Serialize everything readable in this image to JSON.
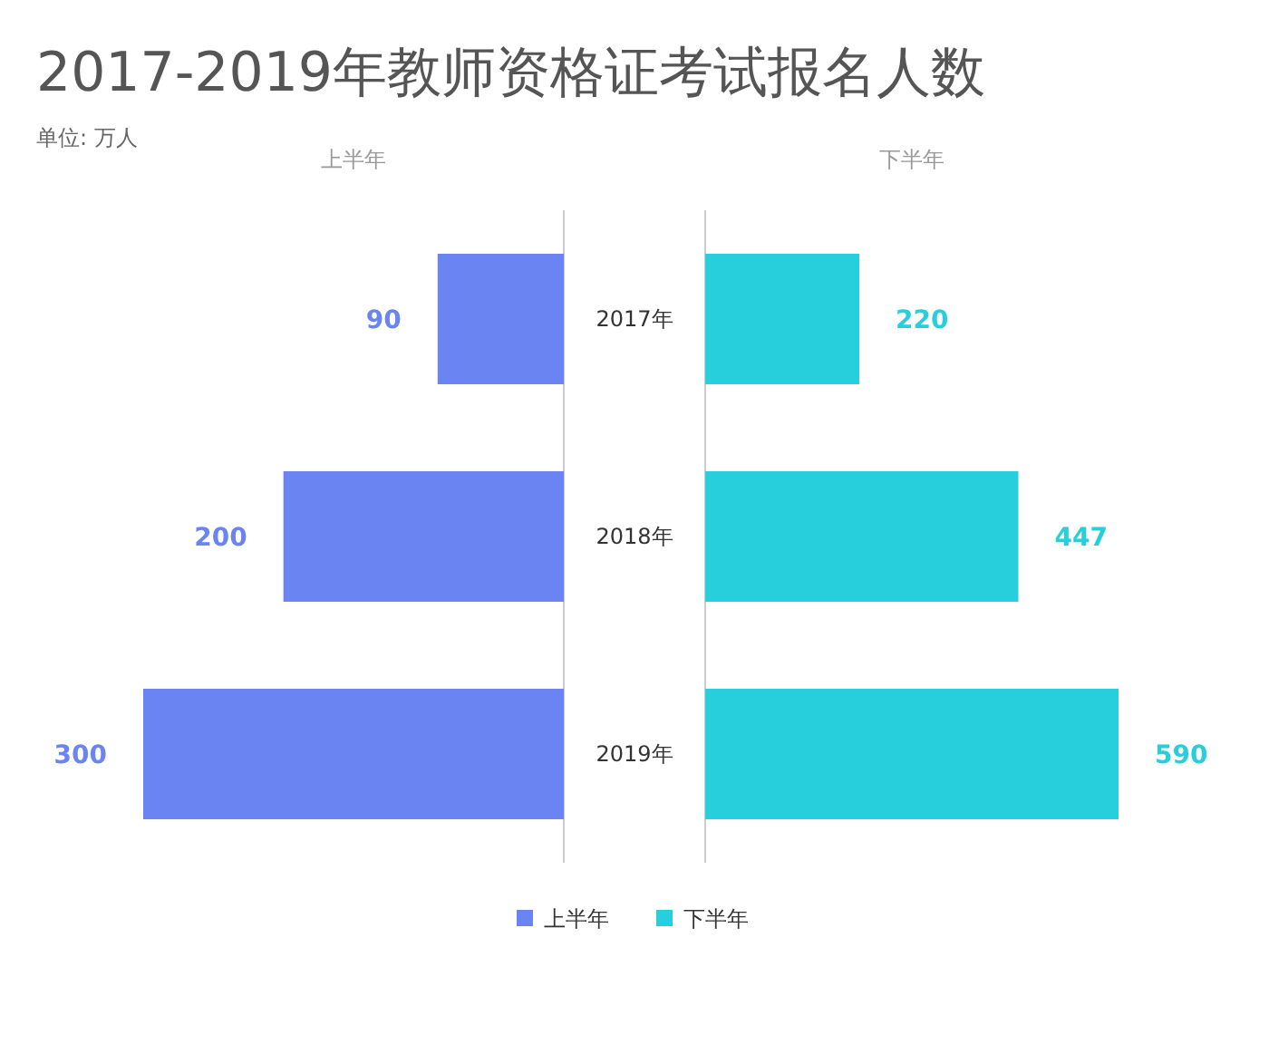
{
  "chart_data": [
    {
      "type": "bar",
      "orientation": "horizontal",
      "title": "2017-2019年教师资格证考试报名人数",
      "subtitle": "单位: 万人",
      "xlabel": "上半年",
      "categories": [
        "2017年",
        "2018年",
        "2019年"
      ],
      "data_labels": true,
      "legend": "bottom",
      "series": [
        {
          "name": "上半年",
          "color": "#6a84f2",
          "values": [
            90,
            200,
            300
          ]
        }
      ]
    },
    {
      "type": "bar",
      "orientation": "horizontal",
      "xlabel": "下半年",
      "categories": [
        null,
        null,
        null
      ],
      "data_labels": true,
      "legend": "bottom",
      "series": [
        {
          "name": "下半年",
          "color": "#26cfdb",
          "values": [
            220,
            447,
            590
          ]
        }
      ]
    }
  ]
}
